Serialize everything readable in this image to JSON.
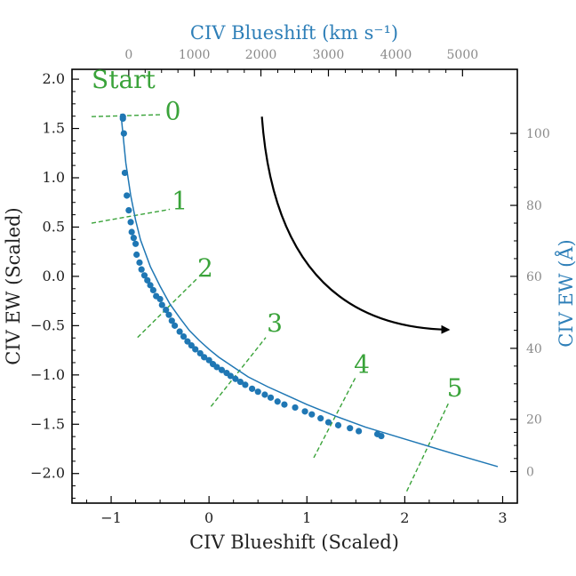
{
  "chart_data": {
    "type": "scatter",
    "xlabel": "CIV Blueshift (Scaled)",
    "ylabel": "CIV EW (Scaled)",
    "top_xlabel": "CIV Blueshift (km s⁻¹)",
    "right_ylabel": "CIV EW (Å)",
    "xlim": [
      -1.4,
      3.15
    ],
    "ylim": [
      -2.3,
      2.1
    ],
    "x_ticks": [
      -1,
      0,
      1,
      2,
      3
    ],
    "y_ticks": [
      -2.0,
      -1.5,
      -1.0,
      -0.5,
      0.0,
      0.5,
      1.0,
      1.5,
      2.0
    ],
    "x_tick_labels": [
      "−1",
      "0",
      "1",
      "2",
      "3"
    ],
    "y_tick_labels": [
      "−2.0",
      "−1.5",
      "−1.0",
      "−0.5",
      "0.0",
      "0.5",
      "1.0",
      "1.5",
      "2.0"
    ],
    "top_ticks": [
      {
        "value": 0,
        "x_scaled": -0.82,
        "label": "0"
      },
      {
        "value": 1000,
        "x_scaled": -0.15,
        "label": "1000"
      },
      {
        "value": 2000,
        "x_scaled": 0.53,
        "label": "2000"
      },
      {
        "value": 3000,
        "x_scaled": 1.22,
        "label": "3000"
      },
      {
        "value": 4000,
        "x_scaled": 1.91,
        "label": "4000"
      },
      {
        "value": 5000,
        "x_scaled": 2.59,
        "label": "5000"
      }
    ],
    "right_ticks": [
      {
        "value": 0,
        "y_scaled": -1.98,
        "label": "0"
      },
      {
        "value": 20,
        "y_scaled": -1.45,
        "label": "20"
      },
      {
        "value": 40,
        "y_scaled": -0.73,
        "label": "40"
      },
      {
        "value": 60,
        "y_scaled": 0.0,
        "label": "60"
      },
      {
        "value": 80,
        "y_scaled": 0.72,
        "label": "80"
      },
      {
        "value": 100,
        "y_scaled": 1.45,
        "label": "100"
      }
    ],
    "curve": {
      "color": "#1f77b4",
      "x": [
        -0.9,
        -0.88,
        -0.85,
        -0.8,
        -0.75,
        -0.7,
        -0.6,
        -0.5,
        -0.4,
        -0.3,
        -0.2,
        -0.1,
        0.0,
        0.1,
        0.25,
        0.4,
        0.6,
        0.8,
        1.0,
        1.3,
        1.6,
        2.0,
        2.5,
        2.95
      ],
      "y": [
        1.65,
        1.45,
        1.15,
        0.82,
        0.57,
        0.37,
        0.1,
        -0.1,
        -0.28,
        -0.42,
        -0.55,
        -0.65,
        -0.74,
        -0.82,
        -0.92,
        -1.02,
        -1.12,
        -1.21,
        -1.3,
        -1.42,
        -1.53,
        -1.65,
        -1.8,
        -1.93
      ]
    },
    "points": {
      "color": "#1f77b4",
      "x": [
        -0.88,
        -0.88,
        -0.87,
        -0.86,
        -0.84,
        -0.82,
        -0.8,
        -0.79,
        -0.77,
        -0.75,
        -0.74,
        -0.71,
        -0.69,
        -0.66,
        -0.63,
        -0.6,
        -0.57,
        -0.54,
        -0.5,
        -0.48,
        -0.44,
        -0.41,
        -0.38,
        -0.35,
        -0.3,
        -0.26,
        -0.22,
        -0.18,
        -0.14,
        -0.09,
        -0.05,
        0.0,
        0.04,
        0.08,
        0.13,
        0.18,
        0.22,
        0.27,
        0.32,
        0.37,
        0.44,
        0.5,
        0.57,
        0.63,
        0.7,
        0.77,
        0.88,
        0.98,
        1.05,
        1.14,
        1.22,
        1.32,
        1.44,
        1.53,
        1.72,
        1.76
      ],
      "y": [
        1.62,
        1.6,
        1.45,
        1.05,
        0.82,
        0.67,
        0.55,
        0.45,
        0.39,
        0.33,
        0.22,
        0.14,
        0.07,
        0.01,
        -0.04,
        -0.09,
        -0.14,
        -0.2,
        -0.23,
        -0.29,
        -0.34,
        -0.39,
        -0.45,
        -0.5,
        -0.56,
        -0.61,
        -0.66,
        -0.7,
        -0.74,
        -0.78,
        -0.82,
        -0.85,
        -0.89,
        -0.92,
        -0.95,
        -0.98,
        -1.01,
        -1.04,
        -1.07,
        -1.1,
        -1.14,
        -1.17,
        -1.2,
        -1.23,
        -1.27,
        -1.3,
        -1.33,
        -1.37,
        -1.4,
        -1.44,
        -1.48,
        -1.51,
        -1.54,
        -1.57,
        -1.6,
        -1.62
      ]
    },
    "annotations": [
      {
        "label": "0",
        "x1": -1.2,
        "y1": 1.62,
        "x2": -0.5,
        "y2": 1.64,
        "label_x": -0.45,
        "label_y": 1.59
      },
      {
        "label": "1",
        "x1": -1.2,
        "y1": 0.54,
        "x2": -0.4,
        "y2": 0.68,
        "label_x": -0.38,
        "label_y": 0.68
      },
      {
        "label": "2",
        "x1": -0.73,
        "y1": -0.62,
        "x2": -0.12,
        "y2": -0.02,
        "label_x": -0.12,
        "label_y": 0.0
      },
      {
        "label": "3",
        "x1": 0.02,
        "y1": -1.32,
        "x2": 0.58,
        "y2": -0.62,
        "label_x": 0.59,
        "label_y": -0.56
      },
      {
        "label": "4",
        "x1": 1.07,
        "y1": -1.84,
        "x2": 1.5,
        "y2": -1.02,
        "label_x": 1.48,
        "label_y": -0.98
      },
      {
        "label": "5",
        "x1": 2.02,
        "y1": -2.18,
        "x2": 2.45,
        "y2": -1.28,
        "label_x": 2.43,
        "label_y": -1.22
      }
    ],
    "start_label": "Start",
    "start_label_pos": {
      "x": -1.2,
      "y": 1.91
    },
    "annotation_color": "#3aa33a",
    "arrow": {
      "x1": 0.54,
      "y1": 1.62,
      "x2": 2.5,
      "y2": -0.55,
      "color": "#000000"
    }
  }
}
